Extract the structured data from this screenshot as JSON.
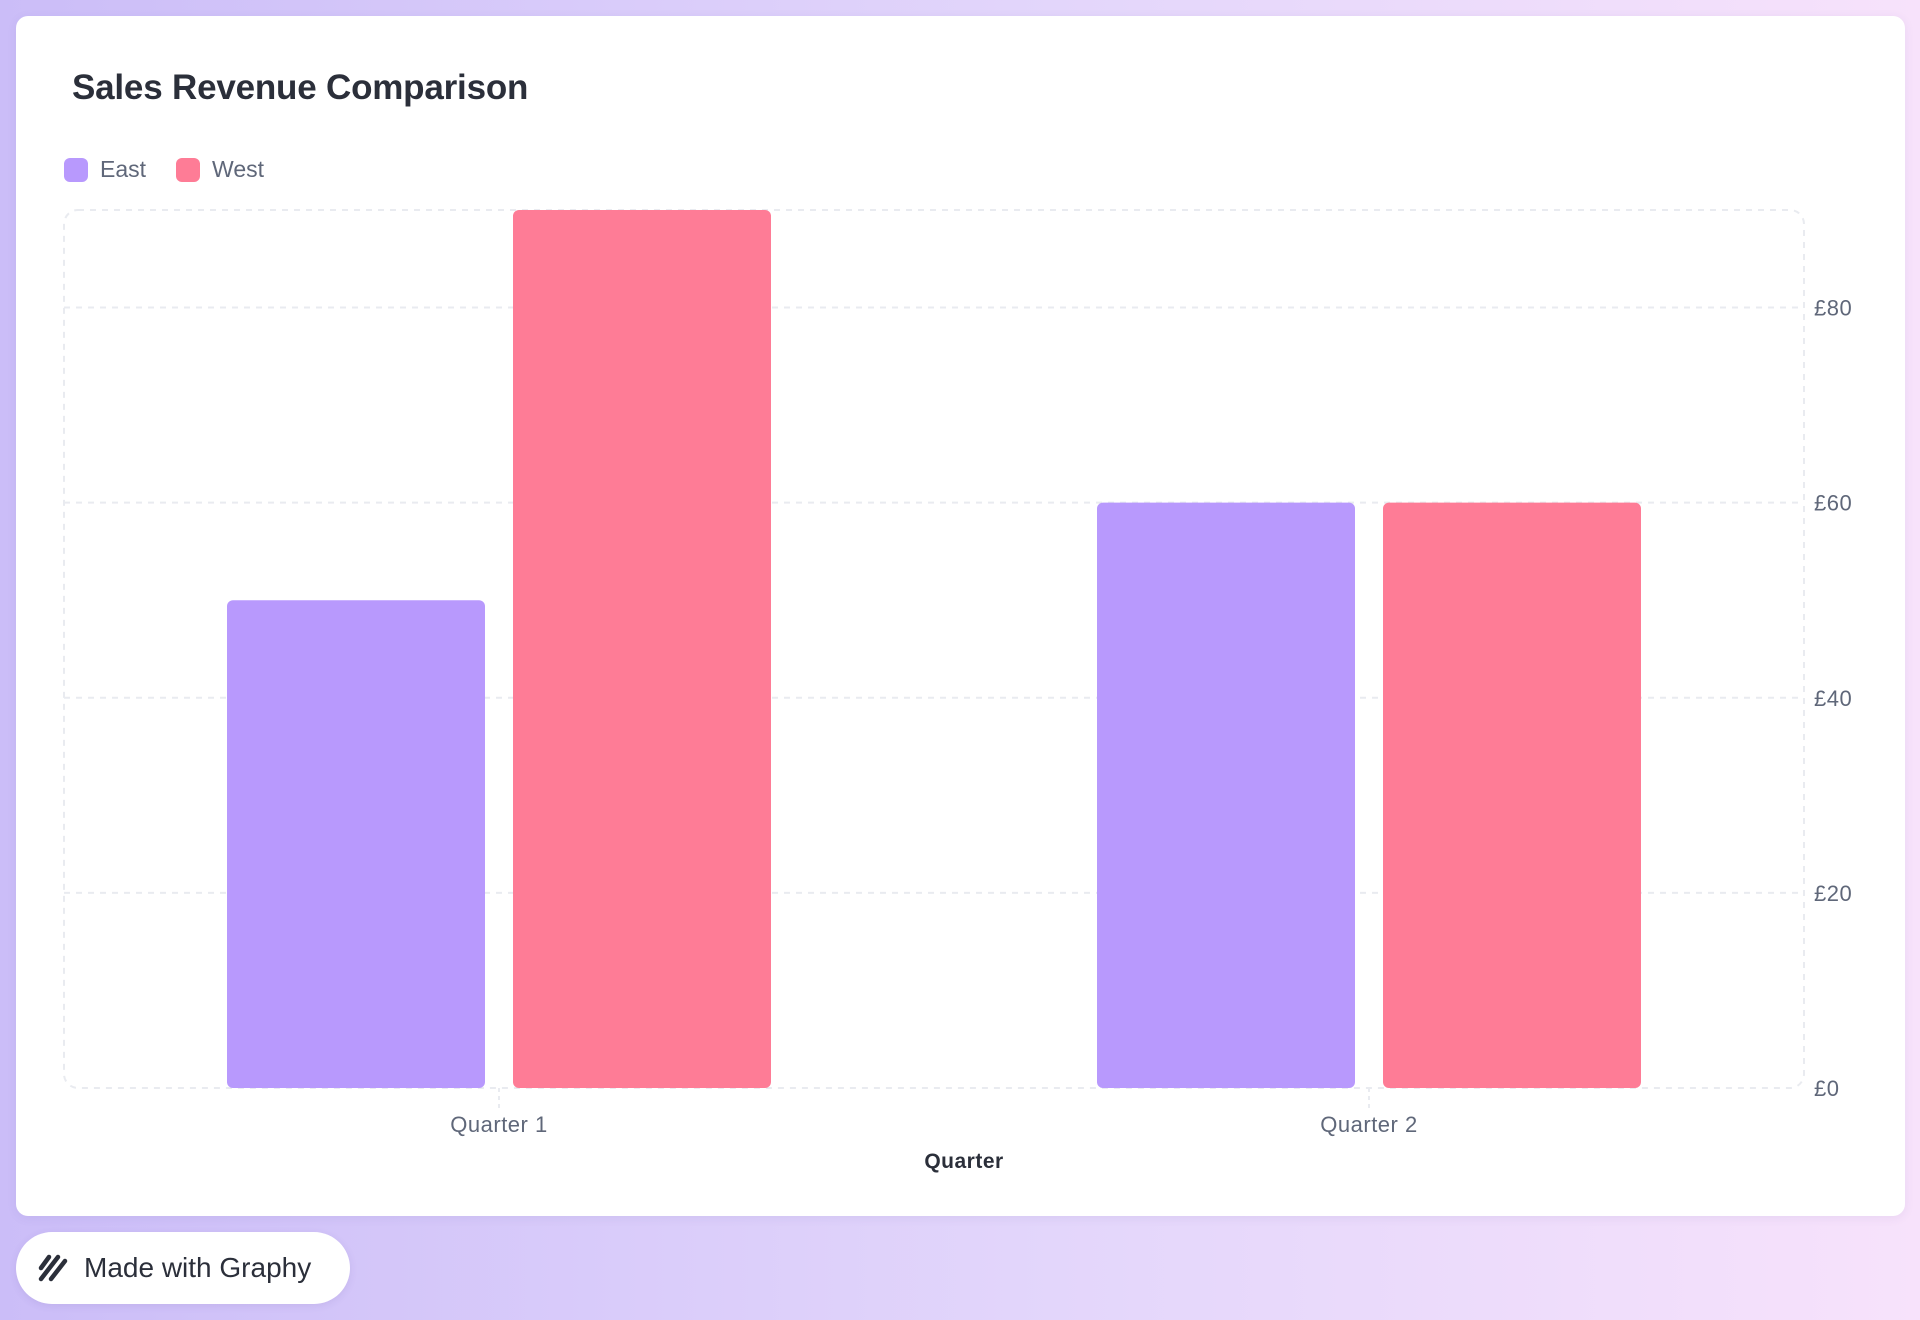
{
  "chart_data": {
    "type": "bar",
    "title": "Sales Revenue Comparison",
    "xlabel": "Quarter",
    "ylabel": "",
    "categories": [
      "Quarter 1",
      "Quarter 2"
    ],
    "series": [
      {
        "name": "East",
        "values": [
          50,
          60
        ],
        "color": "#b899fd"
      },
      {
        "name": "West",
        "values": [
          90,
          60
        ],
        "color": "#fe7c96"
      }
    ],
    "ylim": [
      0,
      90
    ],
    "yticks": [
      0,
      20,
      40,
      60,
      80
    ],
    "ytick_prefix": "£",
    "y_axis_position": "right",
    "legend_position": "top-left",
    "grid": true
  },
  "footer": {
    "badge_label": "Made with Graphy",
    "badge_icon": "graphy-logo-icon"
  }
}
